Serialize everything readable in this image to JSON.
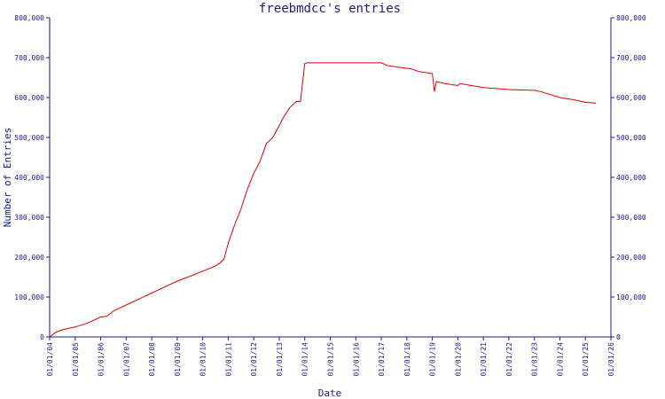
{
  "chart_data": {
    "type": "line",
    "title": "freebmdcc's entries",
    "xlabel": "Date",
    "ylabel": "Number of Entries",
    "x_tick_labels": [
      "01/01/04",
      "01/01/05",
      "01/01/06",
      "01/01/07",
      "01/01/08",
      "01/01/09",
      "01/01/10",
      "01/01/11",
      "01/01/12",
      "01/01/13",
      "01/01/14",
      "01/01/15",
      "01/01/16",
      "01/01/17",
      "01/01/18",
      "01/01/19",
      "01/01/20",
      "01/01/21",
      "01/01/22",
      "01/01/23",
      "01/01/24",
      "01/01/25",
      "01/01/26"
    ],
    "y_tick_labels": [
      "0",
      "100,000",
      "200,000",
      "300,000",
      "400,000",
      "500,000",
      "600,000",
      "700,000",
      "800,000"
    ],
    "ylim": [
      0,
      800000
    ],
    "xlim": [
      "2004-01-01",
      "2026-01-01"
    ],
    "grid": false,
    "legend": "none",
    "right_axis": true,
    "colors": {
      "series": "#dd0000",
      "axes": "#1a1a8c",
      "background": "#ffffff"
    },
    "series": [
      {
        "x": [
          "2004-01-01",
          "2004-04-01",
          "2004-07-01",
          "2005-01-01",
          "2005-07-01",
          "2006-01-01",
          "2006-04-01",
          "2006-07-01",
          "2007-01-01",
          "2007-07-01",
          "2008-01-01",
          "2008-07-01",
          "2009-01-01",
          "2009-07-01",
          "2010-01-01",
          "2010-07-01",
          "2010-09-01",
          "2010-11-01",
          "2011-01-01",
          "2011-04-01",
          "2011-07-01",
          "2011-10-01",
          "2012-01-01",
          "2012-04-01",
          "2012-07-01",
          "2012-10-01",
          "2013-01-01",
          "2013-03-01",
          "2013-06-01",
          "2013-09-01",
          "2013-11-01",
          "2014-01-01",
          "2014-02-01",
          "2014-07-01",
          "2015-01-01",
          "2016-01-01",
          "2017-01-01",
          "2017-04-01",
          "2018-01-01",
          "2018-03-01",
          "2018-07-01",
          "2019-01-01",
          "2019-02-01",
          "2019-03-01",
          "2019-07-01",
          "2020-01-01",
          "2020-02-01",
          "2021-01-01",
          "2022-01-01",
          "2023-01-01",
          "2023-04-01",
          "2024-01-01",
          "2024-07-01",
          "2025-01-01",
          "2025-06-01"
        ],
        "y": [
          0,
          12000,
          18000,
          25000,
          35000,
          50000,
          52000,
          65000,
          80000,
          95000,
          110000,
          125000,
          140000,
          152000,
          165000,
          178000,
          185000,
          195000,
          235000,
          280000,
          320000,
          370000,
          410000,
          440000,
          485000,
          500000,
          530000,
          550000,
          575000,
          590000,
          590000,
          685000,
          687000,
          687000,
          687000,
          687000,
          687000,
          680000,
          673000,
          672000,
          665000,
          660000,
          615000,
          640000,
          635000,
          630000,
          635000,
          625000,
          620000,
          618000,
          615000,
          600000,
          595000,
          588000,
          586000
        ]
      }
    ]
  }
}
